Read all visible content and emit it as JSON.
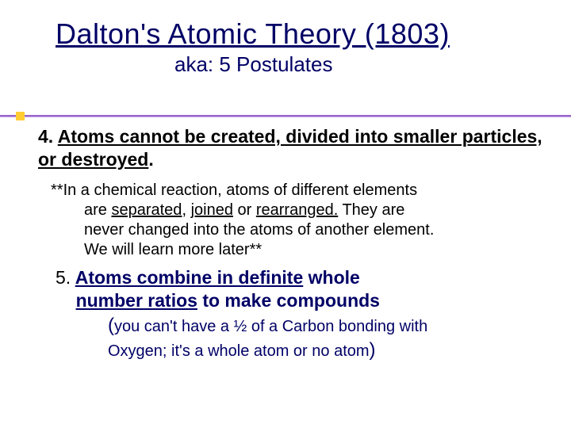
{
  "title": "Dalton's Atomic Theory (1803)",
  "subtitle": "aka: 5 Postulates",
  "postulate4": {
    "number": "4.",
    "head_underlined": "Atoms cannot be created, divided into smaller particles, or destroyed",
    "head_tail": ".",
    "body_lead": "**In a chemical reaction, atoms of different elements",
    "body_l2a": "are ",
    "body_sep": "separated",
    "body_comma": ", ",
    "body_joined": "joined",
    "body_or": " or ",
    "body_rearr": "rearranged.",
    "body_l2b": "  They are",
    "body_l3": "never changed into the atoms of another element.",
    "body_l4": "We will learn more later**"
  },
  "postulate5": {
    "number": "5.",
    "head_u1": "Atoms combine in definite",
    "head_mid": " whole",
    "head_u2": "number ratios",
    "head_plain": " to make compounds",
    "body_open": "(",
    "body_l1": "you can't have a ½ of a Carbon bonding with",
    "body_l2": "Oxygen; it's a whole atom or no atom",
    "body_close": ")"
  },
  "colors": {
    "heading": "#000066",
    "accent_bar": "#9966cc",
    "accent_square": "#ffcc33",
    "body_text": "#000000"
  }
}
